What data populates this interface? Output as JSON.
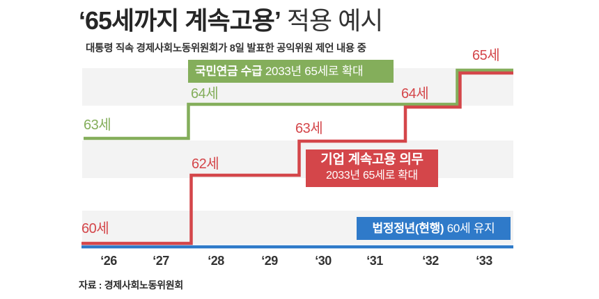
{
  "title": {
    "bold": "‘65세까지 계속고용’",
    "light": "적용 예시"
  },
  "subtitle": "대통령 직속 경제사회노동위원회가 8일 발표한 공익위원 제언 내용 중",
  "source": "자료 : 경제사회노동위원회",
  "colors": {
    "pension_green": "#84AE5B",
    "employment_red": "#D4464A",
    "retirement_blue": "#2F7AC9",
    "band_gray": "#F3F3F3",
    "text": "#2B2B2B"
  },
  "callouts": {
    "pension": {
      "bold": "국민연금 수급",
      "regular": "2033년 65세로 확대"
    },
    "employment": {
      "line1": "기업 계속고용 의무",
      "line2": "2033년 65세로 확대"
    },
    "retirement": {
      "bold": "법정정년(현행)",
      "regular": "60세 유지"
    }
  },
  "chart_data": {
    "type": "line",
    "step": true,
    "title": "‘65세까지 계속고용’ 적용 예시",
    "subtitle": "대통령 직속 경제사회노동위원회가 8일 발표한 공익위원 제언 내용 중",
    "xlabel": "",
    "ylabel": "",
    "ylim": [
      60,
      65
    ],
    "grid": "alternating horizontal gray bands",
    "legend": "inline callout boxes",
    "categories": [
      "‘26",
      "‘27",
      "‘28",
      "‘29",
      "‘30",
      "‘31",
      "‘32",
      "‘33"
    ],
    "series": [
      {
        "name": "국민연금 수급",
        "color": "#84AE5B",
        "values": [
          63,
          63,
          64,
          64,
          64,
          64,
          64,
          65
        ],
        "annotation": "국민연금 수급 2033년 65세로 확대"
      },
      {
        "name": "기업 계속고용 의무",
        "color": "#D4464A",
        "values": [
          60,
          60,
          62,
          62,
          63,
          63,
          64,
          65
        ],
        "annotation": "기업 계속고용 의무 2033년 65세로 확대"
      },
      {
        "name": "법정정년(현행)",
        "color": "#2F7AC9",
        "values": [
          60,
          60,
          60,
          60,
          60,
          60,
          60,
          60
        ],
        "annotation": "법정정년(현행) 60세 유지"
      }
    ],
    "point_labels": [
      {
        "series": "국민연금 수급",
        "category": "‘26",
        "text": "63세"
      },
      {
        "series": "국민연금 수급",
        "category": "‘28",
        "text": "64세"
      },
      {
        "series": "기업 계속고용 의무",
        "category": "‘26",
        "text": "60세"
      },
      {
        "series": "기업 계속고용 의무",
        "category": "‘28",
        "text": "62세"
      },
      {
        "series": "기업 계속고용 의무",
        "category": "‘30",
        "text": "63세"
      },
      {
        "series": "기업 계속고용 의무",
        "category": "‘32",
        "text": "64세"
      },
      {
        "series": "기업 계속고용 의무",
        "category": "‘33",
        "text": "65세"
      }
    ],
    "source": "자료 : 경제사회노동위원회"
  }
}
